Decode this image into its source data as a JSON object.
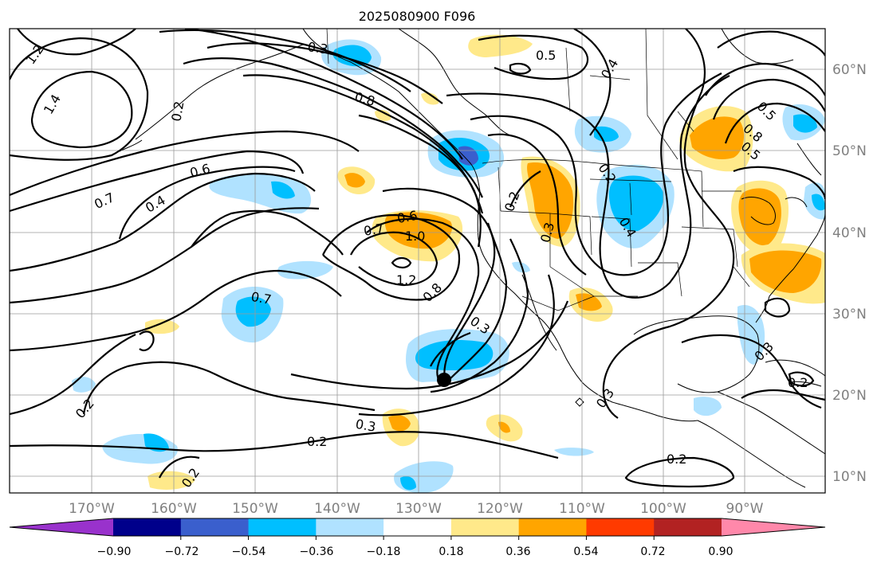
{
  "title": "2025080900 F096",
  "map": {
    "lon_range": [
      -180,
      -80
    ],
    "lat_range": [
      8,
      65
    ],
    "lon_ticks": [
      "170°W",
      "160°W",
      "150°W",
      "140°W",
      "130°W",
      "120°W",
      "110°W",
      "100°W",
      "90°W"
    ],
    "lat_ticks": [
      "60°N",
      "50°N",
      "40°N",
      "30°N",
      "20°N",
      "10°N"
    ],
    "gridlines": true
  },
  "colorbar": {
    "ticks": [
      "−0.90",
      "−0.72",
      "−0.54",
      "−0.36",
      "−0.18",
      "0.18",
      "0.36",
      "0.54",
      "0.72",
      "0.90"
    ],
    "colors": [
      "#9932cc",
      "#00008b",
      "#3a5fcd",
      "#00bfff",
      "#b0e2ff",
      "#ffffff",
      "#ffe98a",
      "#ffa500",
      "#ff3a00",
      "#b22222",
      "#ff88aa"
    ],
    "extend": "both"
  },
  "contour_labels": [
    "1.2",
    "1.4",
    "0.3",
    "0.5",
    "0.4",
    "0.8",
    "0.7",
    "0.6",
    "0.7",
    "0.4",
    "0.6",
    "1.0",
    "1.2",
    "0.7",
    "0.8",
    "0.5",
    "0.3",
    "0.2",
    "0.2",
    "0.3",
    "0.2",
    "0.2",
    "0.3",
    "0.2",
    "0.2",
    "0.4",
    "0.3",
    "0.3",
    "0.2",
    "0.8",
    "0.5",
    "0.2"
  ],
  "marker": {
    "label": "storm-center",
    "lon": -127.3,
    "lat": 21.8
  }
}
